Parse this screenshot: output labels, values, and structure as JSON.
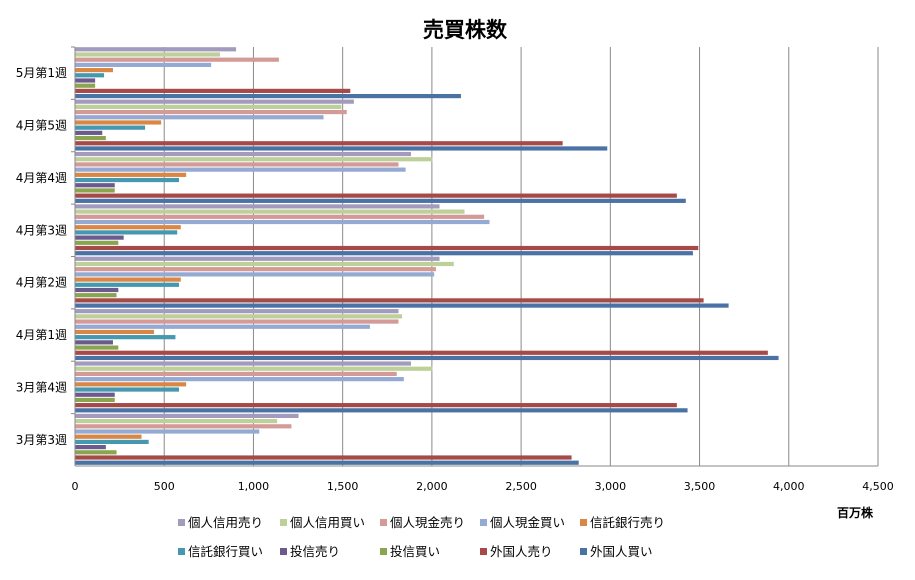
{
  "chart_data": {
    "type": "bar",
    "orientation": "horizontal",
    "title": "売買株数",
    "xlabel": "百万株",
    "ylabel": "",
    "xlim": [
      0,
      4500
    ],
    "xticks": [
      0,
      500,
      1000,
      1500,
      2000,
      2500,
      3000,
      3500,
      4000,
      4500
    ],
    "xtick_labels": [
      "0",
      "500",
      "1,000",
      "1,500",
      "2,000",
      "2,500",
      "3,000",
      "3,500",
      "4,000",
      "4,500"
    ],
    "grid": true,
    "legend_position": "bottom",
    "categories": [
      "5月第1週",
      "4月第5週",
      "4月第4週",
      "4月第3週",
      "4月第2週",
      "4月第1週",
      "3月第4週",
      "3月第3週"
    ],
    "series": [
      {
        "name": "個人信用売り",
        "color": "#A39BBE",
        "values": [
          900,
          1560,
          1880,
          2040,
          2040,
          1810,
          1880,
          1250
        ]
      },
      {
        "name": "個人信用買い",
        "color": "#BDD09A",
        "values": [
          810,
          1490,
          2000,
          2180,
          2120,
          1830,
          2000,
          1130
        ]
      },
      {
        "name": "個人現金売り",
        "color": "#D49A98",
        "values": [
          1140,
          1520,
          1810,
          2290,
          2020,
          1810,
          1800,
          1210
        ]
      },
      {
        "name": "個人現金買い",
        "color": "#95AAD2",
        "values": [
          760,
          1390,
          1850,
          2320,
          2010,
          1650,
          1840,
          1030
        ]
      },
      {
        "name": "信託銀行売り",
        "color": "#DA8745",
        "values": [
          210,
          480,
          620,
          590,
          590,
          440,
          620,
          370
        ]
      },
      {
        "name": "信託銀行買い",
        "color": "#4498B0",
        "values": [
          160,
          390,
          580,
          570,
          580,
          560,
          580,
          410
        ]
      },
      {
        "name": "投信売り",
        "color": "#6C5A8E",
        "values": [
          110,
          150,
          220,
          270,
          240,
          210,
          220,
          170
        ]
      },
      {
        "name": "投信買い",
        "color": "#89A550",
        "values": [
          110,
          170,
          220,
          240,
          230,
          240,
          220,
          230
        ]
      },
      {
        "name": "外国人売り",
        "color": "#A64A48",
        "values": [
          1540,
          2730,
          3370,
          3490,
          3520,
          3880,
          3370,
          2780
        ]
      },
      {
        "name": "外国人買い",
        "color": "#4A72A5",
        "values": [
          2160,
          2980,
          3420,
          3460,
          3660,
          3940,
          3430,
          2820
        ]
      }
    ]
  }
}
